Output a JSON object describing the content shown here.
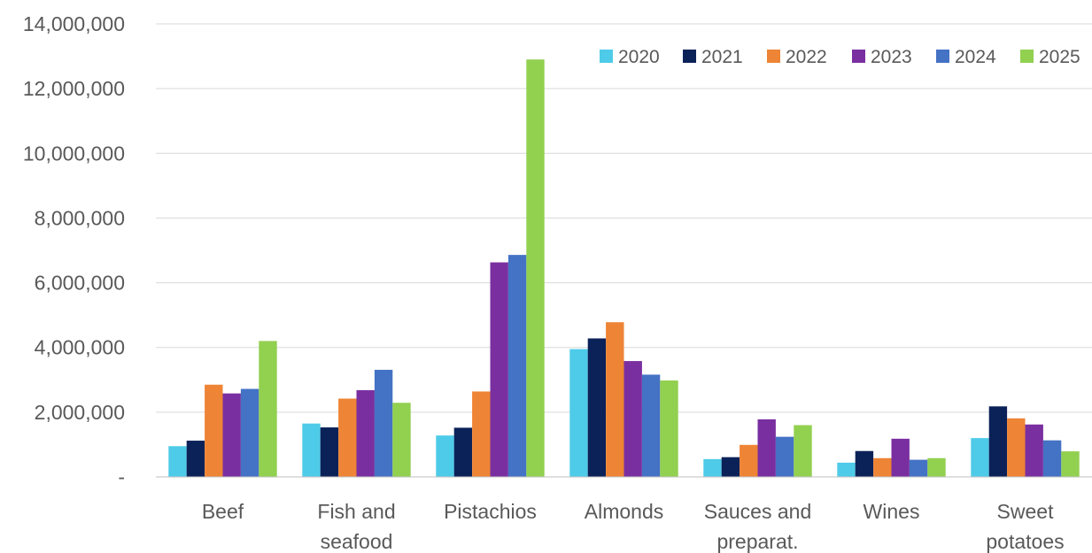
{
  "chart_data": {
    "type": "bar",
    "title": "",
    "xlabel": "",
    "ylabel": "",
    "ylim": [
      0,
      14000000
    ],
    "y_ticks": [
      0,
      2000000,
      4000000,
      6000000,
      8000000,
      10000000,
      12000000,
      14000000
    ],
    "y_tick_labels": [
      "-",
      "2,000,000",
      "4,000,000",
      "6,000,000",
      "8,000,000",
      "10,000,000",
      "12,000,000",
      "14,000,000"
    ],
    "grid": true,
    "legend_position": "top-right",
    "categories": [
      [
        "Beef"
      ],
      [
        "Fish and",
        "seafood"
      ],
      [
        "Pistachios"
      ],
      [
        "Almonds"
      ],
      [
        "Sauces and",
        "preparat."
      ],
      [
        "Wines"
      ],
      [
        "Sweet",
        "potatoes"
      ]
    ],
    "series": [
      {
        "name": "2020",
        "color": "#4ecbe8",
        "values": [
          950000,
          1650000,
          1280000,
          3950000,
          550000,
          440000,
          1200000
        ]
      },
      {
        "name": "2021",
        "color": "#0b2259",
        "values": [
          1120000,
          1530000,
          1520000,
          4280000,
          610000,
          800000,
          2180000
        ]
      },
      {
        "name": "2022",
        "color": "#ee8435",
        "values": [
          2850000,
          2420000,
          2640000,
          4780000,
          990000,
          580000,
          1810000
        ]
      },
      {
        "name": "2023",
        "color": "#7a2fa0",
        "values": [
          2580000,
          2680000,
          6630000,
          3580000,
          1780000,
          1180000,
          1620000
        ]
      },
      {
        "name": "2024",
        "color": "#4472c4",
        "values": [
          2720000,
          3310000,
          6860000,
          3160000,
          1240000,
          530000,
          1130000
        ]
      },
      {
        "name": "2025",
        "color": "#92d050",
        "values": [
          4200000,
          2290000,
          12900000,
          2980000,
          1600000,
          580000,
          790000
        ]
      }
    ]
  }
}
